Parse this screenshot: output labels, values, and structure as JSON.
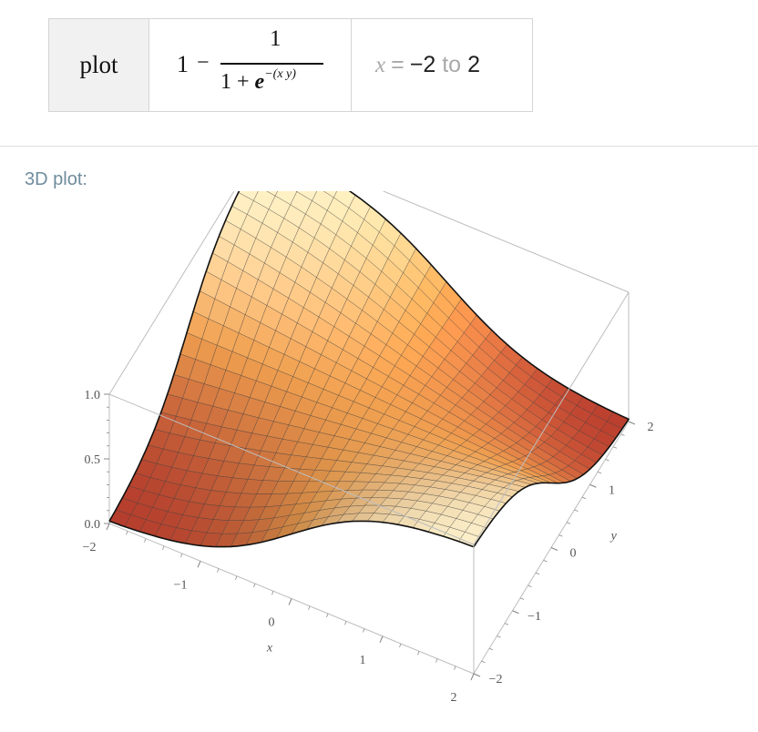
{
  "query": {
    "function_label": "plot",
    "expression": {
      "leading": "1",
      "minus": "−",
      "numerator": "1",
      "denominator_prefix": "1 + ",
      "base": "e",
      "exponent": "−(x y)"
    },
    "range": {
      "variable": "x",
      "equals": "=",
      "from": "−2",
      "to_word": "to",
      "to": "2"
    }
  },
  "pod": {
    "title": "3D plot:"
  },
  "chart_data": {
    "type": "surface",
    "function": "1 - 1/(1 + e^(-(x*y)))",
    "x": [
      -2,
      -1,
      0,
      1,
      2
    ],
    "y": [
      -2,
      -1,
      0,
      1,
      2
    ],
    "z_ticks": [
      "0.0",
      "0.5",
      "1.0"
    ],
    "x_tick_labels": [
      "−2",
      "−1",
      "0",
      "1",
      "2"
    ],
    "y_tick_labels": [
      "−2",
      "−1",
      "0",
      "1",
      "2"
    ],
    "z_tick_labels": [
      "0.0",
      "0.5",
      "1.0"
    ],
    "xlabel": "x",
    "ylabel": "y",
    "xlim": [
      -2,
      2
    ],
    "ylim": [
      -2,
      2
    ],
    "zlim": [
      0,
      1
    ],
    "mesh": true,
    "colors": {
      "low": "#b5392c",
      "mid": "#f0a050",
      "high": "#fff6d2",
      "box": "#bdbdbd",
      "mesh": "#3a3a3a"
    }
  }
}
